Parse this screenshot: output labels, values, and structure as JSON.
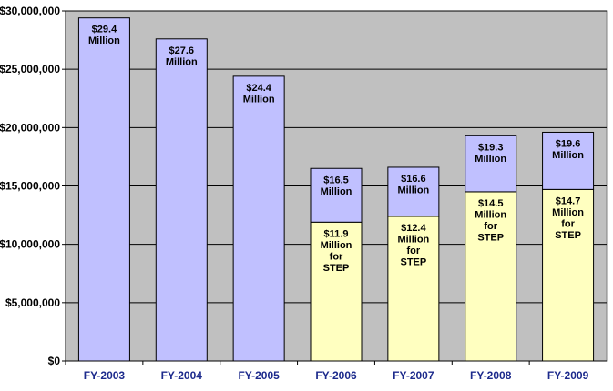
{
  "chart_data": {
    "type": "bar",
    "stacked": true,
    "categories": [
      "FY-2003",
      "FY-2004",
      "FY-2005",
      "FY-2006",
      "FY-2007",
      "FY-2008",
      "FY-2009"
    ],
    "ylim": [
      0,
      30000000
    ],
    "yticks": [
      0,
      5000000,
      10000000,
      15000000,
      20000000,
      25000000,
      30000000
    ],
    "ytick_labels": [
      "$0",
      "$5,000,000",
      "$10,000,000",
      "$15,000,000",
      "$20,000,000",
      "$25,000,000",
      "$30,000,000"
    ],
    "grid": true,
    "series": [
      {
        "key": "step",
        "values": [
          0,
          0,
          0,
          11900000,
          12400000,
          14500000,
          14700000
        ],
        "labels": [
          "",
          "",
          "",
          "$11.9\nMillion\nfor\nSTEP",
          "$12.4\nMillion\nfor\nSTEP",
          "$14.5\nMillion\nfor\nSTEP",
          "$14.7\nMillion\nfor\nSTEP"
        ],
        "color": "#ffffc0"
      },
      {
        "key": "total",
        "values": [
          29400000,
          27600000,
          24400000,
          4600000,
          4200000,
          4800000,
          4900000
        ],
        "labels": [
          "$29.4\nMillion",
          "$27.6\nMillion",
          "$24.4\nMillion",
          "$16.5\nMillion",
          "$16.6\nMillion",
          "$19.3\nMillion",
          "$19.6\nMillion"
        ],
        "color": "#c0c0ff"
      }
    ],
    "colors": {
      "plot_background": "#c0c0c0",
      "gridline": "#000000",
      "xtick_text": "#1c2a8c"
    }
  }
}
